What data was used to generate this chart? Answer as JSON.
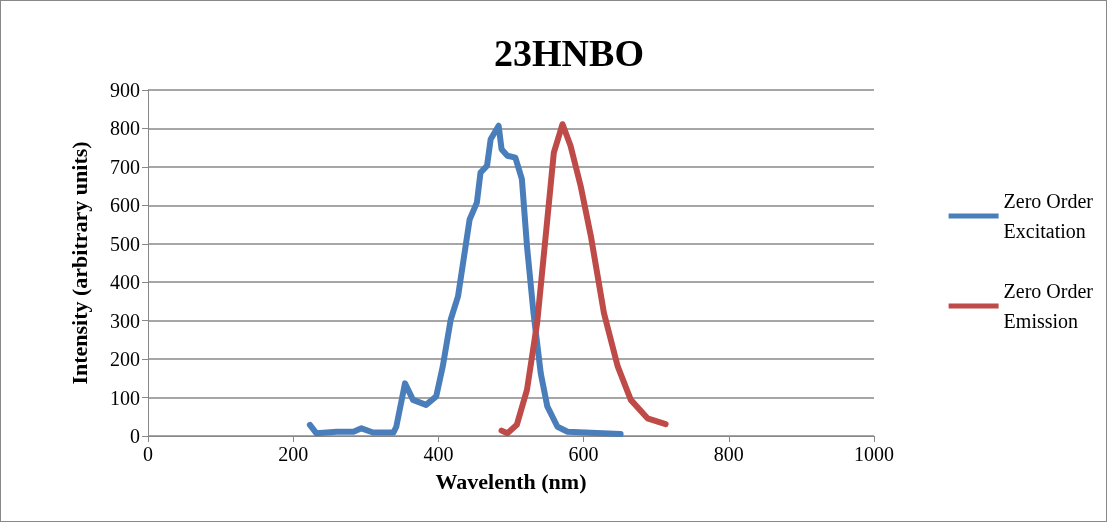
{
  "chart_data": {
    "type": "line",
    "title": "23HNBO",
    "xlabel": "Wavelenth (nm)",
    "ylabel": "Intensity (arbitrary units)",
    "xlim": [
      0,
      1000
    ],
    "xticks": [
      0,
      200,
      400,
      600,
      800,
      1000
    ],
    "ylim": [
      0,
      900
    ],
    "yticks": [
      0,
      100,
      200,
      300,
      400,
      500,
      600,
      700,
      800,
      900
    ],
    "grid": "y",
    "legend": "right",
    "marker": "none",
    "line_style": "solid",
    "series": [
      {
        "name": "Zero Order Excitation",
        "color": "#4a7ebb",
        "x": [
          223,
          232,
          260,
          283,
          294,
          310,
          338,
          342,
          354,
          365,
          383,
          397,
          406,
          417,
          427,
          443,
          453,
          458,
          467,
          472,
          483,
          487,
          495,
          506,
          515,
          522,
          531,
          541,
          550,
          564,
          578,
          651
        ],
        "values": [
          29,
          7,
          11,
          11,
          20,
          9,
          9,
          24,
          137,
          94,
          81,
          103,
          181,
          303,
          363,
          563,
          607,
          685,
          703,
          772,
          807,
          746,
          729,
          724,
          668,
          494,
          320,
          163,
          77,
          24,
          11,
          5
        ]
      },
      {
        "name": "Zero Order Emission",
        "color": "#be4b48",
        "x": [
          487,
          495,
          508,
          522,
          536,
          550,
          559,
          571,
          582,
          596,
          610,
          628,
          647,
          665,
          688,
          713
        ],
        "values": [
          14,
          7,
          29,
          120,
          294,
          563,
          737,
          811,
          755,
          650,
          520,
          320,
          181,
          94,
          46,
          31
        ]
      }
    ]
  }
}
